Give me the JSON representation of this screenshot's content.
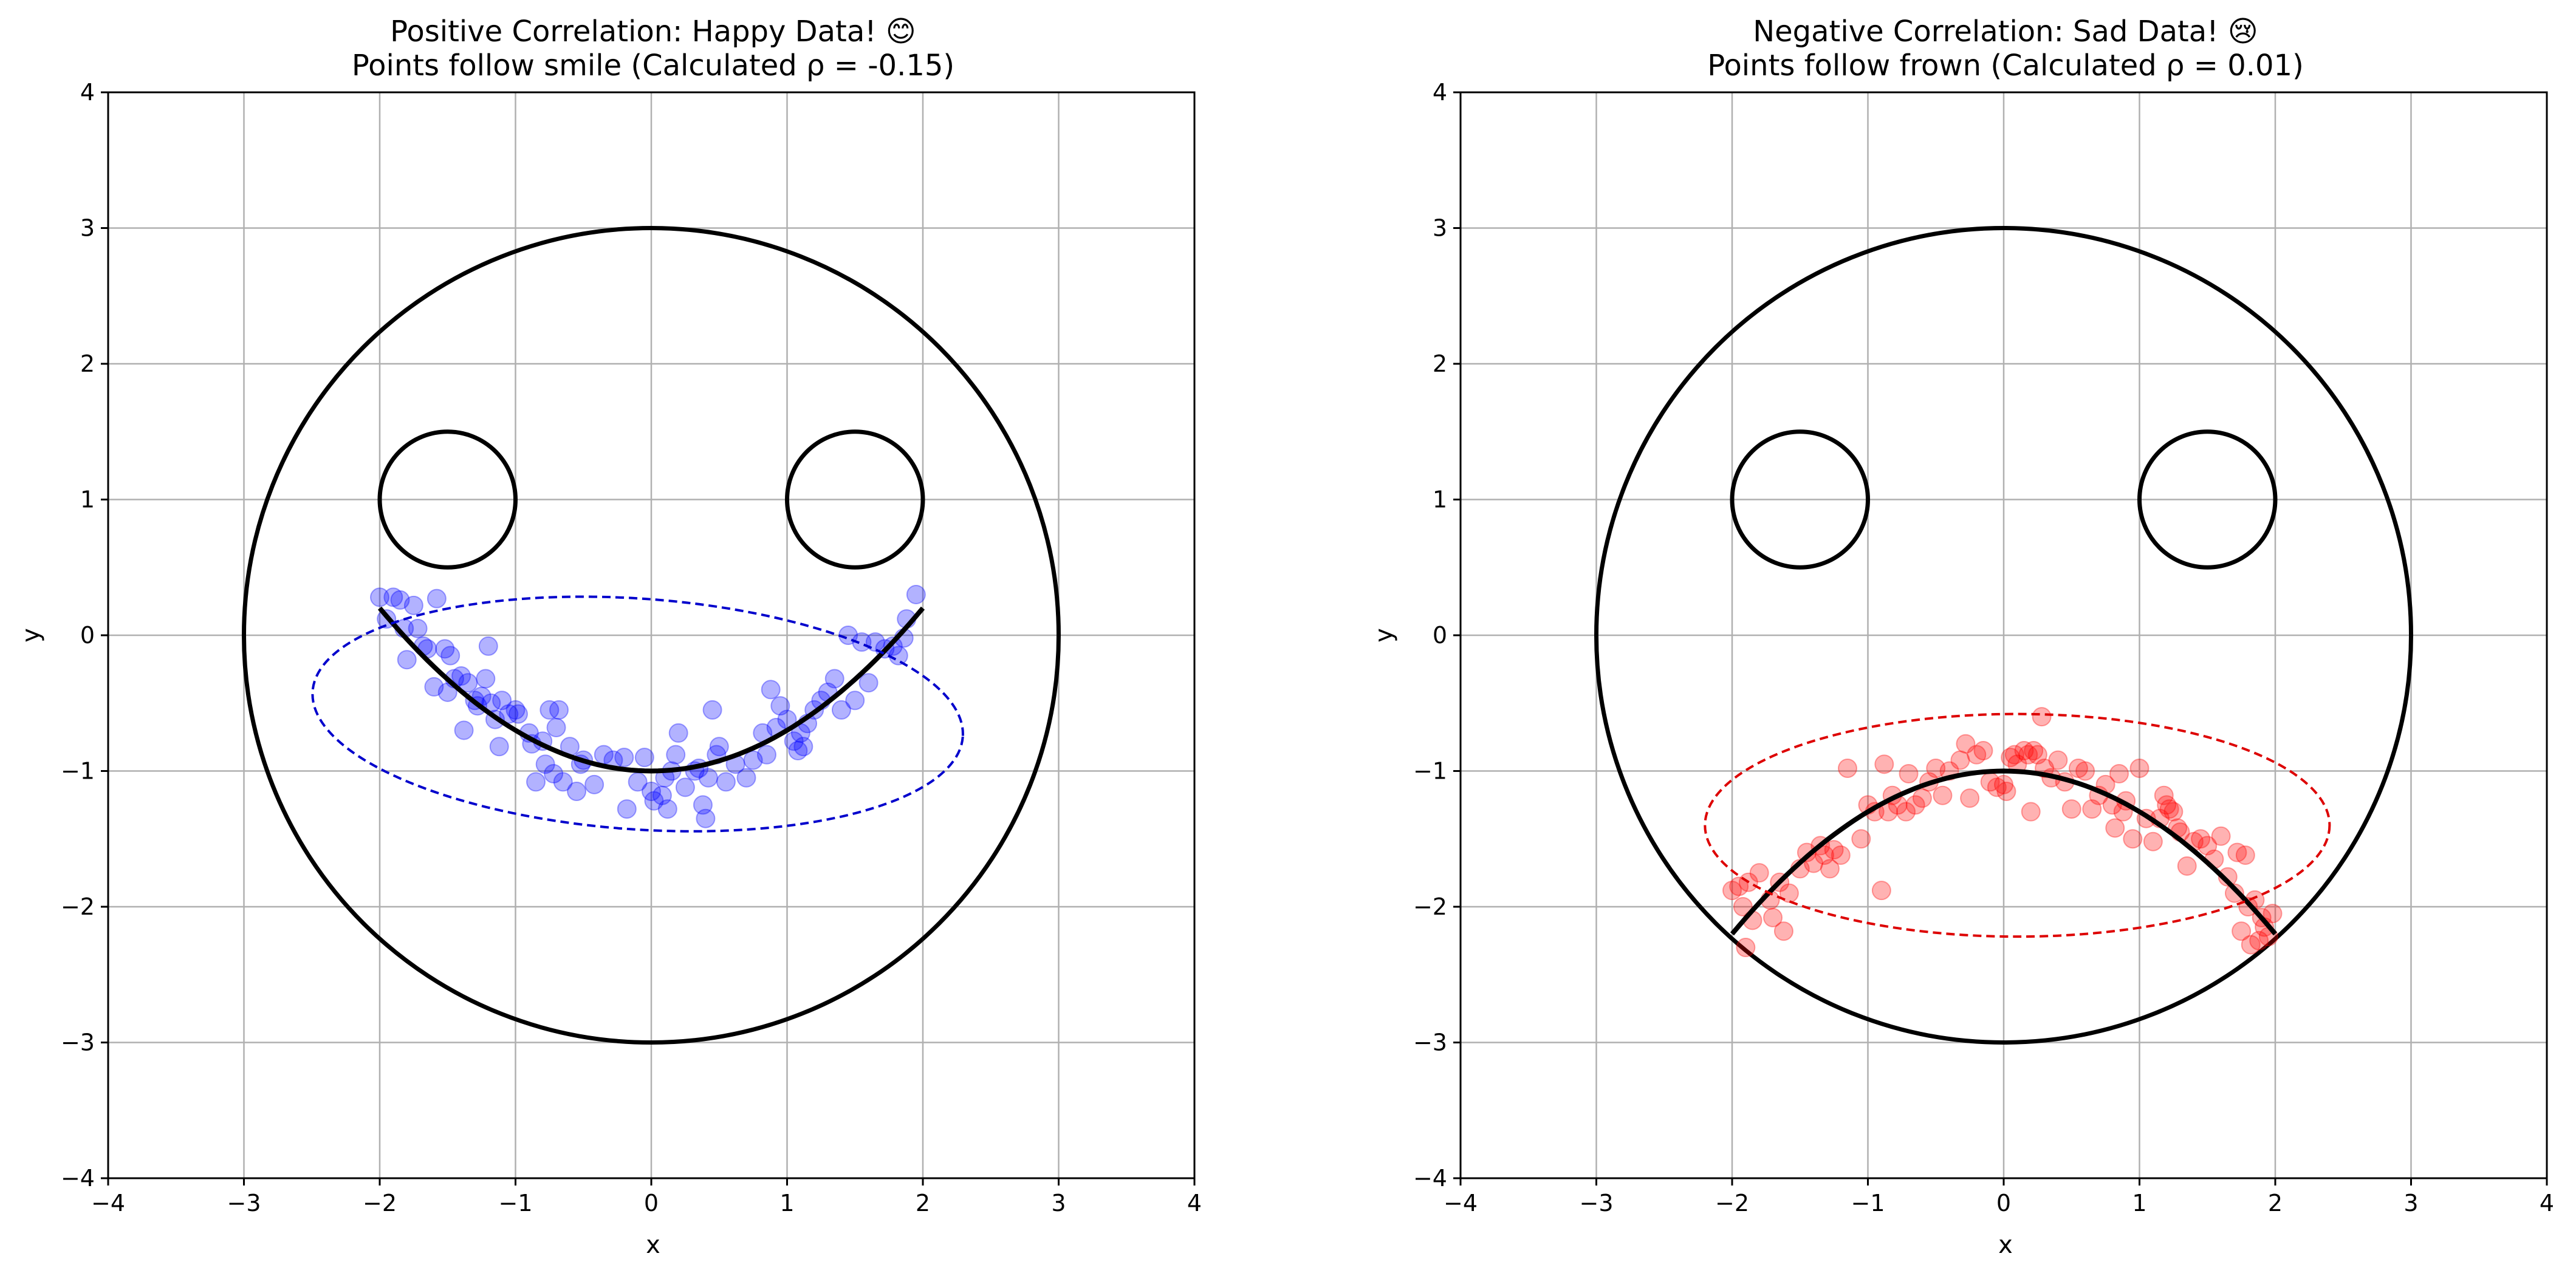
{
  "chart_data": [
    {
      "type": "scatter",
      "title": "Positive Correlation: Happy Data! 😊",
      "subtitle": "Points follow smile (Calculated ρ = -0.15)",
      "xlabel": "x",
      "ylabel": "y",
      "xlim": [
        -4,
        4
      ],
      "ylim": [
        -4,
        4
      ],
      "xticks": [
        "−4",
        "−3",
        "−2",
        "−1",
        "0",
        "1",
        "2",
        "3",
        "4"
      ],
      "yticks": [
        "−4",
        "−3",
        "−2",
        "−1",
        "0",
        "1",
        "2",
        "3",
        "4"
      ],
      "grid": true,
      "point_color": "#0000ff",
      "ellipse_color": "#0000cc",
      "face": {
        "head": {
          "cx": 0,
          "cy": 0,
          "r": 3
        },
        "eyes": [
          {
            "cx": -1.5,
            "cy": 1,
            "r": 0.5
          },
          {
            "cx": 1.5,
            "cy": 1,
            "r": 0.5
          }
        ],
        "mouth": {
          "a": 0.3,
          "b": -1,
          "x_range": [
            -2,
            2
          ]
        }
      },
      "ellipse": {
        "cx": -0.1,
        "cy": -0.58,
        "rx": 2.4,
        "ry": 0.85,
        "angle_deg": -4
      },
      "points": [
        [
          -2.0,
          0.28
        ],
        [
          -1.95,
          0.12
        ],
        [
          -1.9,
          0.28
        ],
        [
          -1.85,
          0.26
        ],
        [
          -1.82,
          0.05
        ],
        [
          -1.8,
          -0.18
        ],
        [
          -1.75,
          0.22
        ],
        [
          -1.72,
          0.05
        ],
        [
          -1.68,
          -0.08
        ],
        [
          -1.65,
          -0.1
        ],
        [
          -1.6,
          -0.38
        ],
        [
          -1.58,
          0.27
        ],
        [
          -1.52,
          -0.1
        ],
        [
          -1.5,
          -0.42
        ],
        [
          -1.48,
          -0.15
        ],
        [
          -1.45,
          -0.32
        ],
        [
          -1.4,
          -0.3
        ],
        [
          -1.38,
          -0.7
        ],
        [
          -1.35,
          -0.35
        ],
        [
          -1.3,
          -0.48
        ],
        [
          -1.28,
          -0.52
        ],
        [
          -1.25,
          -0.45
        ],
        [
          -1.22,
          -0.32
        ],
        [
          -1.2,
          -0.08
        ],
        [
          -1.18,
          -0.5
        ],
        [
          -1.15,
          -0.62
        ],
        [
          -1.12,
          -0.82
        ],
        [
          -1.1,
          -0.48
        ],
        [
          -1.05,
          -0.58
        ],
        [
          -1.0,
          -0.55
        ],
        [
          -0.98,
          -0.58
        ],
        [
          -0.9,
          -0.72
        ],
        [
          -0.88,
          -0.8
        ],
        [
          -0.85,
          -1.08
        ],
        [
          -0.8,
          -0.78
        ],
        [
          -0.78,
          -0.95
        ],
        [
          -0.75,
          -0.55
        ],
        [
          -0.72,
          -1.02
        ],
        [
          -0.7,
          -0.68
        ],
        [
          -0.68,
          -0.55
        ],
        [
          -0.65,
          -1.08
        ],
        [
          -0.6,
          -0.82
        ],
        [
          -0.55,
          -1.15
        ],
        [
          -0.52,
          -0.95
        ],
        [
          -0.5,
          -0.92
        ],
        [
          -0.42,
          -1.1
        ],
        [
          -0.35,
          -0.88
        ],
        [
          -0.28,
          -0.92
        ],
        [
          -0.2,
          -0.9
        ],
        [
          -0.18,
          -1.28
        ],
        [
          -0.1,
          -1.08
        ],
        [
          -0.05,
          -0.9
        ],
        [
          0.0,
          -1.15
        ],
        [
          0.02,
          -1.22
        ],
        [
          0.08,
          -1.18
        ],
        [
          0.1,
          -1.05
        ],
        [
          0.12,
          -1.28
        ],
        [
          0.15,
          -1.0
        ],
        [
          0.18,
          -0.88
        ],
        [
          0.2,
          -0.72
        ],
        [
          0.25,
          -1.12
        ],
        [
          0.32,
          -1.0
        ],
        [
          0.35,
          -0.98
        ],
        [
          0.38,
          -1.25
        ],
        [
          0.4,
          -1.35
        ],
        [
          0.42,
          -1.05
        ],
        [
          0.45,
          -0.55
        ],
        [
          0.48,
          -0.88
        ],
        [
          0.5,
          -0.82
        ],
        [
          0.55,
          -1.08
        ],
        [
          0.62,
          -0.95
        ],
        [
          0.7,
          -1.05
        ],
        [
          0.75,
          -0.92
        ],
        [
          0.82,
          -0.72
        ],
        [
          0.85,
          -0.88
        ],
        [
          0.88,
          -0.4
        ],
        [
          0.92,
          -0.68
        ],
        [
          0.95,
          -0.52
        ],
        [
          1.0,
          -0.62
        ],
        [
          1.05,
          -0.78
        ],
        [
          1.08,
          -0.85
        ],
        [
          1.1,
          -0.72
        ],
        [
          1.12,
          -0.82
        ],
        [
          1.15,
          -0.65
        ],
        [
          1.2,
          -0.55
        ],
        [
          1.25,
          -0.48
        ],
        [
          1.3,
          -0.42
        ],
        [
          1.35,
          -0.32
        ],
        [
          1.4,
          -0.55
        ],
        [
          1.45,
          0.0
        ],
        [
          1.5,
          -0.48
        ],
        [
          1.55,
          -0.05
        ],
        [
          1.6,
          -0.35
        ],
        [
          1.65,
          -0.05
        ],
        [
          1.72,
          -0.1
        ],
        [
          1.78,
          -0.08
        ],
        [
          1.82,
          -0.15
        ],
        [
          1.86,
          -0.02
        ],
        [
          1.88,
          0.12
        ],
        [
          1.95,
          0.3
        ]
      ]
    },
    {
      "type": "scatter",
      "title": "Negative Correlation: Sad Data! 😢",
      "subtitle": "Points follow frown (Calculated ρ = 0.01)",
      "xlabel": "x",
      "ylabel": "y",
      "xlim": [
        -4,
        4
      ],
      "ylim": [
        -4,
        4
      ],
      "xticks": [
        "−4",
        "−3",
        "−2",
        "−1",
        "0",
        "1",
        "2",
        "3",
        "4"
      ],
      "yticks": [
        "−4",
        "−3",
        "−2",
        "−1",
        "0",
        "1",
        "2",
        "3",
        "4"
      ],
      "grid": true,
      "point_color": "#ff0000",
      "ellipse_color": "#dd0000",
      "face": {
        "head": {
          "cx": 0,
          "cy": 0,
          "r": 3
        },
        "eyes": [
          {
            "cx": -1.5,
            "cy": 1,
            "r": 0.5
          },
          {
            "cx": 1.5,
            "cy": 1,
            "r": 0.5
          }
        ],
        "mouth": {
          "a": -0.3,
          "b": -1,
          "x_range": [
            -2,
            2
          ]
        }
      },
      "ellipse": {
        "cx": 0.1,
        "cy": -1.4,
        "rx": 2.3,
        "ry": 0.82,
        "angle_deg": 0
      },
      "points": [
        [
          -2.0,
          -1.88
        ],
        [
          -1.95,
          -1.85
        ],
        [
          -1.92,
          -2.0
        ],
        [
          -1.9,
          -2.3
        ],
        [
          -1.88,
          -1.82
        ],
        [
          -1.85,
          -2.1
        ],
        [
          -1.8,
          -1.75
        ],
        [
          -1.72,
          -1.95
        ],
        [
          -1.7,
          -2.08
        ],
        [
          -1.65,
          -1.82
        ],
        [
          -1.62,
          -2.18
        ],
        [
          -1.58,
          -1.9
        ],
        [
          -1.5,
          -1.72
        ],
        [
          -1.45,
          -1.6
        ],
        [
          -1.4,
          -1.68
        ],
        [
          -1.35,
          -1.55
        ],
        [
          -1.32,
          -1.62
        ],
        [
          -1.28,
          -1.72
        ],
        [
          -1.25,
          -1.58
        ],
        [
          -1.2,
          -1.62
        ],
        [
          -1.15,
          -0.98
        ],
        [
          -1.05,
          -1.5
        ],
        [
          -1.0,
          -1.25
        ],
        [
          -0.95,
          -1.3
        ],
        [
          -0.9,
          -1.88
        ],
        [
          -0.88,
          -0.95
        ],
        [
          -0.85,
          -1.3
        ],
        [
          -0.82,
          -1.18
        ],
        [
          -0.78,
          -1.25
        ],
        [
          -0.72,
          -1.3
        ],
        [
          -0.7,
          -1.02
        ],
        [
          -0.65,
          -1.25
        ],
        [
          -0.6,
          -1.2
        ],
        [
          -0.55,
          -1.08
        ],
        [
          -0.5,
          -0.98
        ],
        [
          -0.45,
          -1.18
        ],
        [
          -0.4,
          -1.0
        ],
        [
          -0.32,
          -0.92
        ],
        [
          -0.28,
          -0.8
        ],
        [
          -0.25,
          -1.2
        ],
        [
          -0.2,
          -0.88
        ],
        [
          -0.15,
          -0.85
        ],
        [
          -0.1,
          -1.08
        ],
        [
          -0.05,
          -1.12
        ],
        [
          0.0,
          -1.1
        ],
        [
          0.02,
          -1.15
        ],
        [
          0.05,
          -0.9
        ],
        [
          0.08,
          -0.88
        ],
        [
          0.1,
          -0.95
        ],
        [
          0.15,
          -0.85
        ],
        [
          0.18,
          -0.88
        ],
        [
          0.2,
          -1.3
        ],
        [
          0.22,
          -0.85
        ],
        [
          0.25,
          -0.88
        ],
        [
          0.28,
          -0.6
        ],
        [
          0.3,
          -0.98
        ],
        [
          0.35,
          -1.05
        ],
        [
          0.4,
          -0.92
        ],
        [
          0.45,
          -1.08
        ],
        [
          0.5,
          -1.28
        ],
        [
          0.55,
          -0.98
        ],
        [
          0.6,
          -1.0
        ],
        [
          0.65,
          -1.28
        ],
        [
          0.7,
          -1.18
        ],
        [
          0.75,
          -1.1
        ],
        [
          0.8,
          -1.25
        ],
        [
          0.82,
          -1.42
        ],
        [
          0.85,
          -1.02
        ],
        [
          0.88,
          -1.3
        ],
        [
          0.9,
          -1.22
        ],
        [
          0.95,
          -1.5
        ],
        [
          1.0,
          -0.98
        ],
        [
          1.05,
          -1.35
        ],
        [
          1.1,
          -1.52
        ],
        [
          1.15,
          -1.35
        ],
        [
          1.18,
          -1.18
        ],
        [
          1.2,
          -1.25
        ],
        [
          1.22,
          -1.28
        ],
        [
          1.25,
          -1.3
        ],
        [
          1.28,
          -1.42
        ],
        [
          1.3,
          -1.45
        ],
        [
          1.35,
          -1.7
        ],
        [
          1.4,
          -1.52
        ],
        [
          1.45,
          -1.5
        ],
        [
          1.5,
          -1.55
        ],
        [
          1.55,
          -1.65
        ],
        [
          1.6,
          -1.48
        ],
        [
          1.65,
          -1.78
        ],
        [
          1.7,
          -1.9
        ],
        [
          1.72,
          -1.6
        ],
        [
          1.75,
          -2.18
        ],
        [
          1.78,
          -1.62
        ],
        [
          1.8,
          -2.0
        ],
        [
          1.82,
          -2.28
        ],
        [
          1.85,
          -1.95
        ],
        [
          1.88,
          -2.25
        ],
        [
          1.9,
          -2.08
        ],
        [
          1.92,
          -2.15
        ],
        [
          1.95,
          -2.22
        ],
        [
          1.98,
          -2.05
        ]
      ]
    }
  ]
}
